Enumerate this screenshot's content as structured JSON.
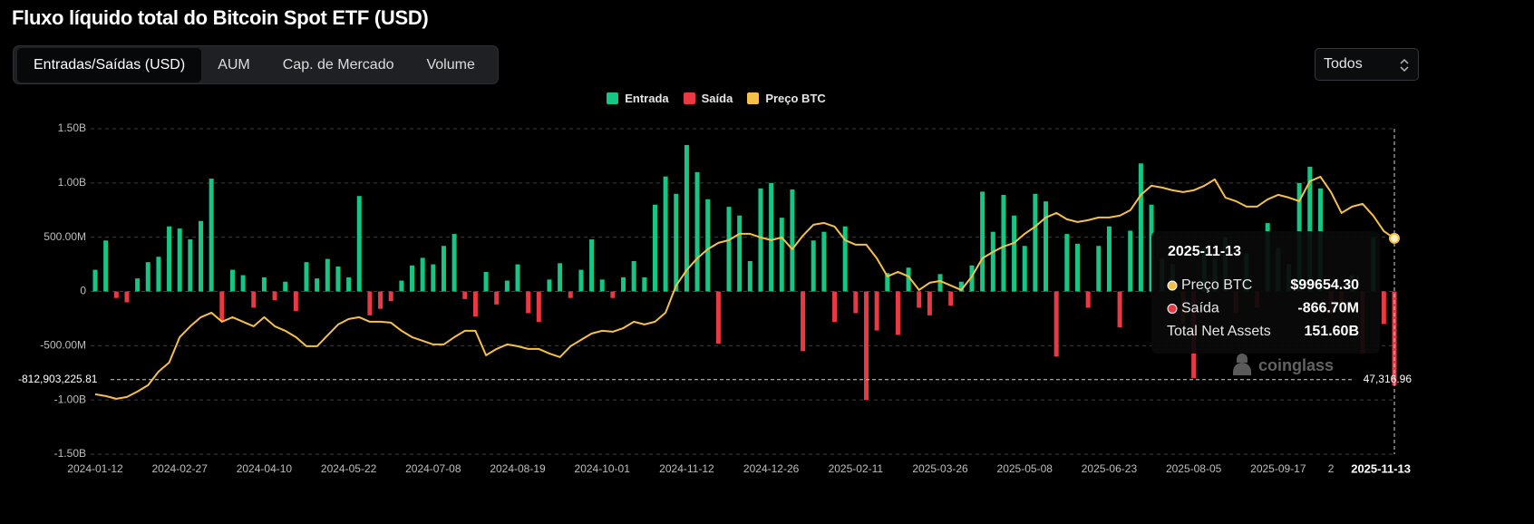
{
  "header": {
    "title": "Fluxo líquido total do Bitcoin Spot ETF (USD)"
  },
  "tabs": [
    "Entradas/Saídas (USD)",
    "AUM",
    "Cap. de Mercado",
    "Volume"
  ],
  "range_select": "Todos",
  "chart_data": {
    "type": "bar",
    "categories": [
      "2024-01-12",
      null,
      null,
      null,
      null,
      null,
      null,
      null,
      "2024-02-27",
      null,
      null,
      null,
      null,
      null,
      null,
      null,
      "2024-04-10",
      null,
      null,
      null,
      null,
      null,
      null,
      null,
      "2024-05-22",
      null,
      null,
      null,
      null,
      null,
      null,
      null,
      "2024-07-08",
      null,
      null,
      null,
      null,
      null,
      null,
      null,
      "2024-08-19",
      null,
      null,
      null,
      null,
      null,
      null,
      null,
      "2024-10-01",
      null,
      null,
      null,
      null,
      null,
      null,
      null,
      "2024-11-12",
      null,
      null,
      null,
      null,
      null,
      null,
      null,
      "2024-12-26",
      null,
      null,
      null,
      null,
      null,
      null,
      null,
      "2025-02-11",
      null,
      null,
      null,
      null,
      null,
      null,
      null,
      "2025-03-26",
      null,
      null,
      null,
      null,
      null,
      null,
      null,
      "2025-05-08",
      null,
      null,
      null,
      null,
      null,
      null,
      null,
      "2025-06-23",
      null,
      null,
      null,
      null,
      null,
      null,
      null,
      "2025-08-05",
      null,
      null,
      null,
      null,
      null,
      null,
      null,
      "2025-09-17",
      null,
      null,
      null,
      null,
      "2",
      null,
      null,
      null,
      null,
      null,
      "2025-11-13"
    ],
    "series": [
      {
        "name": "Entrada",
        "color": "#16c784",
        "values": [
          200000000.0,
          470000000.0,
          null,
          null,
          120000000.0,
          270000000.0,
          320000000.0,
          600000000.0,
          580000000.0,
          480000000.0,
          650000000.0,
          1040000000.0,
          null,
          200000000.0,
          150000000.0,
          null,
          130000000.0,
          null,
          90000000.0,
          null,
          270000000.0,
          120000000.0,
          300000000.0,
          230000000.0,
          130000000.0,
          880000000.0,
          null,
          null,
          null,
          100000000.0,
          240000000.0,
          310000000.0,
          250000000.0,
          420000000.0,
          530000000.0,
          null,
          null,
          180000000.0,
          null,
          100000000.0,
          250000000.0,
          null,
          null,
          110000000.0,
          260000000.0,
          null,
          200000000.0,
          480000000.0,
          110000000.0,
          null,
          130000000.0,
          280000000.0,
          130000000.0,
          800000000.0,
          1060000000.0,
          900000000.0,
          1350000000.0,
          1100000000.0,
          850000000.0,
          null,
          780000000.0,
          700000000.0,
          280000000.0,
          950000000.0,
          1000000000.0,
          680000000.0,
          940000000.0,
          null,
          470000000.0,
          550000000.0,
          null,
          600000000.0,
          null,
          null,
          null,
          170000000.0,
          null,
          220000000.0,
          null,
          null,
          160000000.0,
          null,
          90000000.0,
          240000000.0,
          920000000.0,
          550000000.0,
          890000000.0,
          700000000.0,
          420000000.0,
          900000000.0,
          830000000.0,
          null,
          530000000.0,
          440000000.0,
          null,
          420000000.0,
          600000000.0,
          null,
          560000000.0,
          1180000000.0,
          800000000.0,
          300000000.0,
          250000000.0,
          null,
          null,
          400000000.0,
          300000000.0,
          500000000.0,
          null,
          350000000.0,
          null,
          630000000.0,
          400000000.0,
          250000000.0,
          1000000000.0,
          1150000000.0,
          950000000.0,
          null,
          null,
          150000000.0,
          null,
          500000000.0,
          null,
          null
        ]
      },
      {
        "name": "Saída",
        "color": "#ea3943",
        "values": [
          null,
          null,
          -60000000.0,
          -100000000.0,
          null,
          null,
          null,
          null,
          null,
          null,
          null,
          null,
          -270000000.0,
          null,
          null,
          -150000000.0,
          null,
          -80000000.0,
          null,
          -180000000.0,
          null,
          null,
          null,
          null,
          null,
          null,
          -220000000.0,
          -160000000.0,
          -90000000.0,
          null,
          null,
          null,
          null,
          null,
          null,
          -70000000.0,
          -230000000.0,
          null,
          -120000000.0,
          null,
          null,
          -200000000.0,
          -280000000.0,
          null,
          null,
          -60000000.0,
          null,
          null,
          null,
          -60000000.0,
          null,
          null,
          null,
          null,
          null,
          null,
          null,
          null,
          null,
          -480000000.0,
          null,
          null,
          null,
          null,
          null,
          null,
          null,
          -550000000.0,
          null,
          null,
          -280000000.0,
          null,
          -200000000.0,
          -1000000000.0,
          -360000000.0,
          null,
          -400000000.0,
          null,
          -150000000.0,
          -220000000.0,
          null,
          -130000000.0,
          null,
          null,
          null,
          null,
          null,
          null,
          null,
          null,
          null,
          -600000000.0,
          null,
          null,
          -150000000.0,
          null,
          null,
          -330000000.0,
          null,
          null,
          null,
          null,
          null,
          -300000000.0,
          -800000000.0,
          null,
          null,
          null,
          -200000000.0,
          null,
          -150000000.0,
          null,
          null,
          null,
          null,
          null,
          null,
          -200000000.0,
          -150000000.0,
          null,
          -570000000.0,
          null,
          -300000000.0,
          -866700000.0
        ]
      },
      {
        "name": "Preço BTC",
        "color": "#f5c04a",
        "type": "line",
        "axis": "y2",
        "values": [
          42680,
          42020,
          41020,
          41690,
          43670,
          45990,
          50960,
          54270,
          63550,
          67520,
          70830,
          72490,
          69180,
          70830,
          69180,
          67520,
          70830,
          67520,
          65860,
          63550,
          60230,
          60230,
          64210,
          68180,
          70170,
          70830,
          69180,
          69180,
          68850,
          65860,
          63550,
          62220,
          60900,
          60900,
          63550,
          65860,
          65860,
          56920,
          59240,
          60900,
          60230,
          59240,
          59240,
          57580,
          56260,
          60230,
          62550,
          64870,
          65860,
          65530,
          66860,
          69180,
          68180,
          69180,
          72490,
          82420,
          88050,
          92360,
          95670,
          97990,
          98980,
          101300,
          101300,
          99980,
          98980,
          99980,
          95670,
          100640,
          104620,
          105280,
          103950,
          98980,
          97330,
          97330,
          92360,
          85740,
          87390,
          85740,
          80770,
          83420,
          84080,
          82420,
          80770,
          85740,
          92360,
          94680,
          96670,
          97990,
          101300,
          103950,
          107260,
          108920,
          106600,
          105610,
          106270,
          107260,
          107260,
          107930,
          109910,
          115540,
          118860,
          118190,
          117200,
          116540,
          117200,
          118860,
          121170,
          114550,
          113230,
          111240,
          111240,
          113890,
          115540,
          114550,
          113230,
          120510,
          122170,
          116540,
          108920,
          111240,
          112230,
          107930,
          102300,
          99654.3
        ]
      }
    ],
    "ylim": [
      -1500000000,
      1500000000
    ],
    "yticks": [
      {
        "value": 1500000000,
        "label": "1.50B"
      },
      {
        "value": 1000000000,
        "label": "1.00B"
      },
      {
        "value": 500000000,
        "label": "500.00M"
      },
      0,
      {
        "value": -500000000,
        "label": "-500.00M"
      },
      {
        "value": -1000000000,
        "label": "-1.00B"
      },
      {
        "value": -1500000000,
        "label": "-1.50B"
      }
    ],
    "y2lim": [
      20800,
      139700
    ],
    "grid": true,
    "crosshair": {
      "y": {
        "value": -812903225.81,
        "label": "-812,903,225.81"
      },
      "y2": {
        "value": 47316.96,
        "label": "47,316.96"
      }
    },
    "tooltip": {
      "date": "2025-11-13",
      "rows": [
        {
          "label": "Preço BTC",
          "value": "$99654.30"
        },
        {
          "label": "Saída",
          "value": "-866.70M"
        },
        {
          "label": "Total Net Assets",
          "value": "151.60B"
        }
      ]
    },
    "watermark": "coinglass"
  }
}
